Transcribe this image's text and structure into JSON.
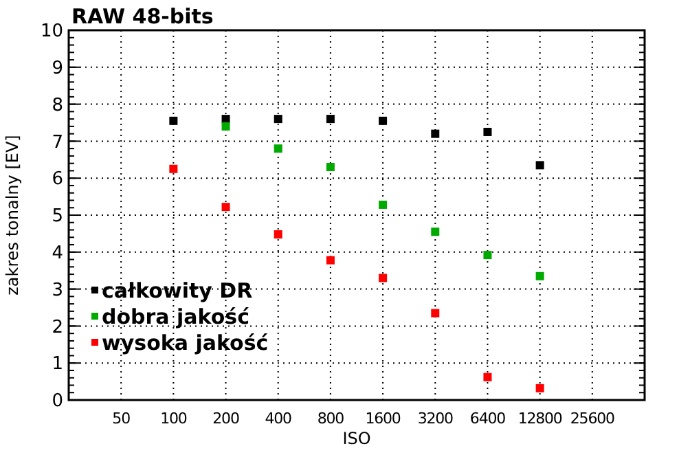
{
  "chart_data": {
    "type": "scatter",
    "title": "RAW 48-bits",
    "xlabel": "ISO",
    "ylabel": "zakres tonalny [EV]",
    "log": "x",
    "xlim": [
      25,
      51200
    ],
    "xticks": [
      50,
      100,
      200,
      400,
      800,
      1600,
      3200,
      6400,
      12800,
      25600
    ],
    "ylim": [
      0,
      10
    ],
    "yticks": [
      0,
      1,
      2,
      3,
      4,
      5,
      6,
      7,
      8,
      9,
      10
    ],
    "grid": true,
    "legend": "bottom left",
    "marker": "square",
    "series": [
      {
        "name": "całkowity DR",
        "color": "#000000",
        "x": [
          100,
          200,
          400,
          800,
          1600,
          3200,
          6400,
          12800
        ],
        "values": [
          7.55,
          7.6,
          7.6,
          7.6,
          7.55,
          7.2,
          7.25,
          6.35
        ]
      },
      {
        "name": "dobra jakość",
        "color": "#00aa00",
        "x": [
          200,
          400,
          800,
          1600,
          3200,
          6400,
          12800
        ],
        "values": [
          7.4,
          6.8,
          6.3,
          5.28,
          4.55,
          3.92,
          3.35
        ]
      },
      {
        "name": "wysoka jakość",
        "color": "#ff0000",
        "x": [
          100,
          200,
          400,
          800,
          1600,
          3200,
          6400,
          12800
        ],
        "values": [
          6.25,
          5.22,
          4.48,
          3.78,
          3.3,
          2.35,
          0.62,
          0.32
        ]
      }
    ]
  }
}
